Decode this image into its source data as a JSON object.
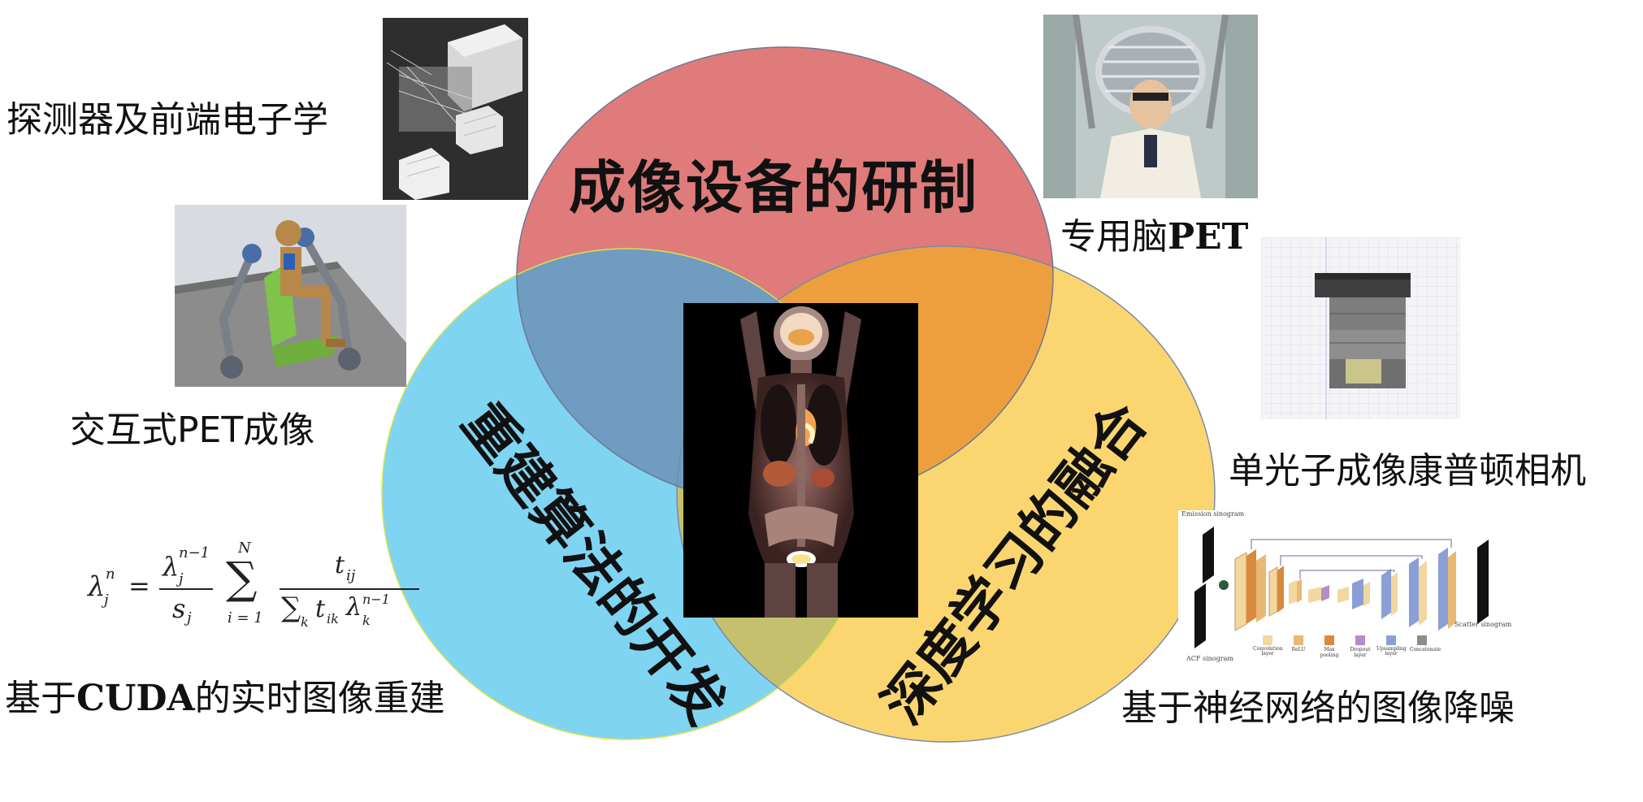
{
  "venn": {
    "top_label": "成像设备的研制",
    "left_label": "重建算法的开发",
    "right_label": "深度学习的融合",
    "colors": {
      "top": "#e07b7b",
      "left": "#7fd4f2",
      "right": "#fbd670",
      "top_left": "#6f9cc0",
      "top_right": "#ee9f3d",
      "left_right": "#c4c06e",
      "stroke": "#6a7a94"
    }
  },
  "labels": {
    "detector": "探测器及前端电子学",
    "interactive_pet": "交互式PET成像",
    "cuda_prefix": "基于",
    "cuda_bold": "CUDA",
    "cuda_suffix": "的实时图像重建",
    "brain_pet_prefix": "专用脑",
    "brain_pet_bold": "PET",
    "compton": "单光子成像康普顿相机",
    "denoise": "基于神经网络的图像降噪"
  },
  "formula": {
    "lhs": "λ",
    "lhs_sup": "n",
    "lhs_sub": "j",
    "eq": "=",
    "num": "λ",
    "num_sup": "n−1",
    "num_sub": "j",
    "den": "s",
    "den_sub": "j",
    "sum_top": "N",
    "sum": "∑",
    "sum_bottom": "i = 1",
    "frac_num": "t",
    "frac_num_sub": "ij",
    "frac_den_sum": "∑",
    "frac_den_sum_sub": "k",
    "frac_den_t": "t",
    "frac_den_t_sub": "ik",
    "frac_den_l": "λ",
    "frac_den_l_sup": "n−1",
    "frac_den_l_sub": "k"
  },
  "network": {
    "input_label": "Emission sinogram",
    "second_input_label": "ACF sinogram",
    "output_label": "Scatter sinogram",
    "legend": [
      {
        "name": "Convolution layer",
        "color": "#f2d7a0"
      },
      {
        "name": "ReLU",
        "color": "#e9b872"
      },
      {
        "name": "Max pooling",
        "color": "#d98a3d"
      },
      {
        "name": "Dropout layer",
        "color": "#b58bc9"
      },
      {
        "name": "Upsampling layer",
        "color": "#8a9fd6"
      },
      {
        "name": "Concatenate",
        "color": "#8c8c8c"
      }
    ]
  }
}
